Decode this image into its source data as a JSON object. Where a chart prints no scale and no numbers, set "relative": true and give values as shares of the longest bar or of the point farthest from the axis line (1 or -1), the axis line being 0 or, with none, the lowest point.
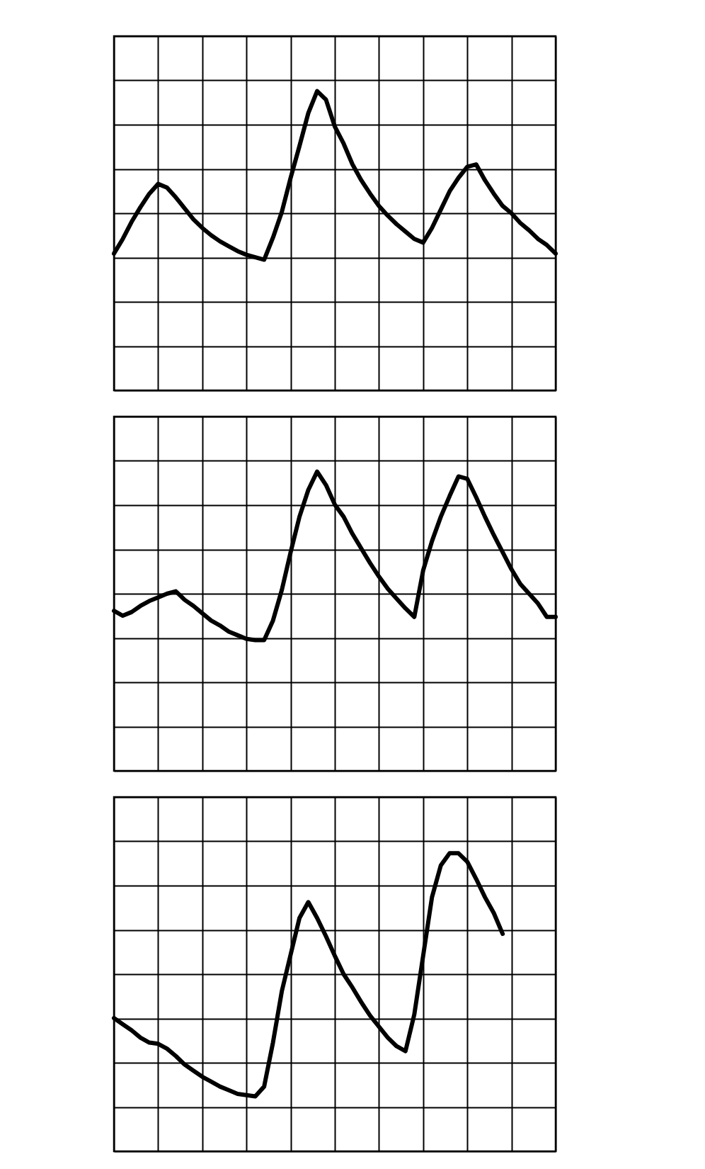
{
  "chart_data": [
    {
      "type": "line",
      "relative": true,
      "grid": true,
      "tick_labels": false,
      "color": "#000000",
      "categories": [
        null,
        null,
        null,
        null,
        null,
        null,
        null,
        null,
        null,
        null,
        null,
        null,
        null,
        null,
        null,
        null,
        null,
        null,
        null,
        null,
        null,
        null,
        null,
        null,
        null,
        null,
        null,
        null,
        null,
        null,
        null,
        null,
        null,
        null,
        null,
        null,
        null,
        null,
        null,
        null,
        null,
        null,
        null,
        null,
        null,
        null,
        null,
        null,
        null,
        null,
        null
      ],
      "values": [
        -0.33,
        -0.21,
        -0.07,
        0.05,
        0.16,
        0.24,
        0.21,
        0.13,
        0.04,
        -0.05,
        -0.12,
        -0.18,
        -0.23,
        -0.27,
        -0.31,
        -0.34,
        -0.36,
        -0.38,
        -0.2,
        0.01,
        0.29,
        0.55,
        0.82,
        1.0,
        0.93,
        0.71,
        0.57,
        0.4,
        0.27,
        0.16,
        0.06,
        -0.02,
        -0.09,
        -0.15,
        -0.21,
        -0.24,
        -0.12,
        0.03,
        0.18,
        0.29,
        0.38,
        0.4,
        0.27,
        0.16,
        0.06,
        0.0,
        -0.08,
        -0.14,
        -0.21,
        -0.26,
        -0.33
      ]
    },
    {
      "type": "line",
      "relative": true,
      "grid": true,
      "tick_labels": false,
      "color": "#000000",
      "categories": [
        null,
        null,
        null,
        null,
        null,
        null,
        null,
        null,
        null,
        null,
        null,
        null,
        null,
        null,
        null,
        null,
        null,
        null,
        null,
        null,
        null,
        null,
        null,
        null,
        null,
        null,
        null,
        null,
        null,
        null,
        null,
        null,
        null,
        null,
        null,
        null,
        null,
        null,
        null,
        null,
        null,
        null,
        null,
        null,
        null,
        null,
        null,
        null,
        null,
        null,
        null
      ],
      "values": [
        -0.14,
        -0.18,
        -0.15,
        -0.1,
        -0.06,
        -0.03,
        0.0,
        0.02,
        -0.05,
        -0.1,
        -0.16,
        -0.22,
        -0.26,
        -0.31,
        -0.34,
        -0.37,
        -0.38,
        -0.38,
        -0.22,
        0.03,
        0.34,
        0.63,
        0.85,
        1.0,
        0.89,
        0.73,
        0.63,
        0.49,
        0.37,
        0.25,
        0.14,
        0.04,
        -0.04,
        -0.12,
        -0.19,
        0.19,
        0.43,
        0.63,
        0.8,
        0.96,
        0.94,
        0.79,
        0.63,
        0.48,
        0.34,
        0.2,
        0.08,
        0.0,
        -0.08,
        -0.19,
        -0.19
      ]
    },
    {
      "type": "line",
      "relative": true,
      "grid": true,
      "tick_labels": false,
      "color": "#000000",
      "categories": [
        null,
        null,
        null,
        null,
        null,
        null,
        null,
        null,
        null,
        null,
        null,
        null,
        null,
        null,
        null,
        null,
        null,
        null,
        null,
        null,
        null,
        null,
        null,
        null,
        null,
        null,
        null,
        null,
        null,
        null,
        null,
        null,
        null,
        null,
        null,
        null,
        null,
        null,
        null,
        null,
        null,
        null,
        null,
        null,
        null,
        null,
        null,
        null,
        null,
        null,
        null
      ],
      "values": [
        -0.36,
        -0.41,
        -0.46,
        -0.52,
        -0.56,
        -0.57,
        -0.61,
        -0.67,
        -0.74,
        -0.79,
        -0.84,
        -0.88,
        -0.92,
        -0.95,
        -0.98,
        -0.99,
        -1.0,
        -0.92,
        -0.56,
        -0.14,
        0.16,
        0.46,
        0.59,
        0.46,
        0.31,
        0.15,
        0.0,
        -0.11,
        -0.23,
        -0.34,
        -0.43,
        -0.52,
        -0.59,
        -0.63,
        -0.33,
        0.15,
        0.63,
        0.89,
        0.99,
        0.99,
        0.92,
        0.78,
        0.63,
        0.5,
        0.33,
        null,
        null,
        null,
        null,
        null,
        null
      ]
    }
  ]
}
